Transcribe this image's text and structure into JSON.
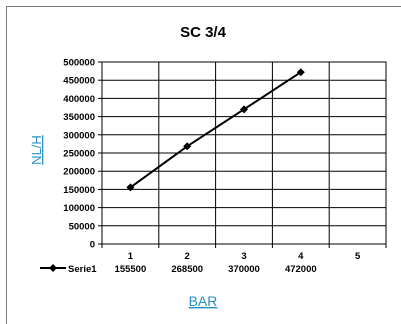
{
  "chart_data": {
    "type": "line",
    "title": "SC 3/4",
    "xlabel": "BAR",
    "ylabel": "NL/H",
    "categories": [
      "1",
      "2",
      "3",
      "4",
      "5"
    ],
    "ylim": [
      0,
      500000
    ],
    "yticks": [
      "0",
      "50000",
      "100000",
      "150000",
      "200000",
      "250000",
      "300000",
      "350000",
      "400000",
      "450000",
      "500000"
    ],
    "grid": true,
    "legend_position": "bottom-left",
    "series": [
      {
        "name": "Serie1",
        "values": [
          155500,
          268500,
          370000,
          472000,
          null
        ],
        "value_labels": [
          "155500",
          "268500",
          "370000",
          "472000"
        ],
        "color": "#000000",
        "marker": "diamond"
      }
    ]
  }
}
